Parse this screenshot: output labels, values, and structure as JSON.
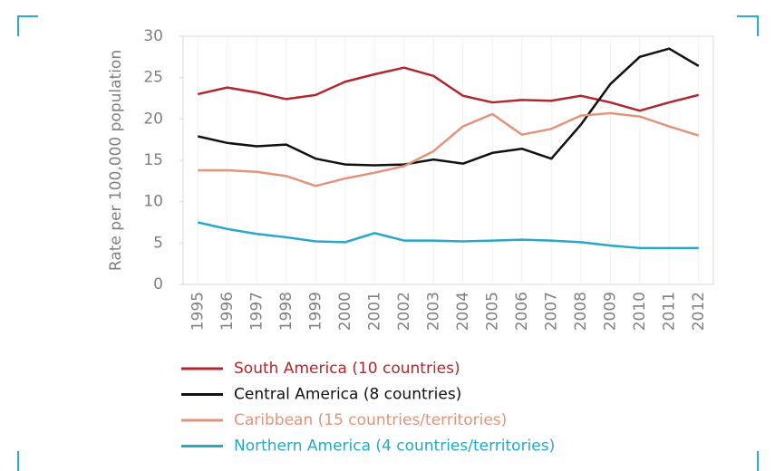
{
  "chart_data": {
    "type": "line",
    "y_label": "Rate per 100,000 population",
    "categories": [
      "1995",
      "1996",
      "1997",
      "1998",
      "1999",
      "2000",
      "2001",
      "2002",
      "2003",
      "2004",
      "2005",
      "2006",
      "2007",
      "2008",
      "2009",
      "2010",
      "2011",
      "2012"
    ],
    "series": [
      {
        "name": "South America (10 countries)",
        "color": "#b0282e",
        "values": [
          23,
          23.8,
          23.2,
          22.4,
          22.9,
          24.5,
          25.4,
          26.2,
          25.2,
          22.8,
          22,
          22.3,
          22.2,
          22.8,
          22,
          21,
          22,
          22.9
        ]
      },
      {
        "name": "Central America (8 countries)",
        "color": "#111111",
        "values": [
          17.9,
          17.1,
          16.7,
          16.9,
          15.2,
          14.5,
          14.4,
          14.5,
          15.1,
          14.6,
          15.9,
          16.4,
          15.2,
          19.3,
          24.2,
          27.5,
          28.5,
          26.4
        ]
      },
      {
        "name": "Caribbean (15 countries/territories)",
        "color": "#e0957a",
        "values": [
          13.8,
          13.8,
          13.6,
          13.1,
          11.9,
          12.8,
          13.5,
          14.3,
          16.1,
          19.1,
          20.6,
          18.1,
          18.8,
          20.4,
          20.7,
          20.3,
          19.1,
          18
        ]
      },
      {
        "name": "Northern America  (4 countries/territories)",
        "color": "#28a8c6",
        "values": [
          7.5,
          6.7,
          6.1,
          5.7,
          5.2,
          5.1,
          6.2,
          5.3,
          5.3,
          5.2,
          5.3,
          5.4,
          5.3,
          5.1,
          4.7,
          4.4,
          4.4,
          4.4
        ]
      }
    ],
    "ylim": [
      0,
      30
    ],
    "yticks": [
      0,
      5,
      10,
      15,
      20,
      25,
      30
    ]
  }
}
